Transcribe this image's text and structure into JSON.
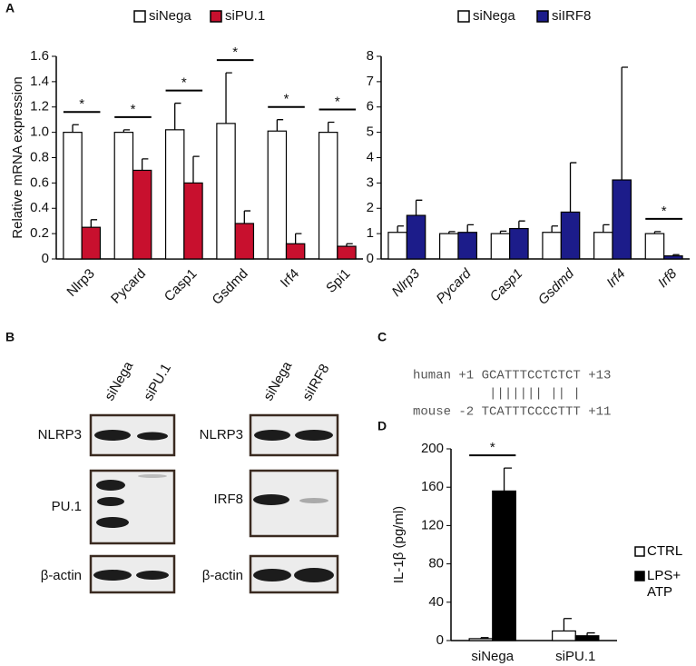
{
  "panels": [
    "A",
    "B",
    "C",
    "D"
  ],
  "chart_data": [
    {
      "type": "bar",
      "ylabel": "Relative mRNA expression",
      "legend": "top",
      "italic": false,
      "categories": [
        "Nlrp3",
        "Pycard",
        "Casp1",
        "Gsdmd",
        "Irf4",
        "Spi1"
      ],
      "series": [
        {
          "name": "siNega",
          "color": "#ffffff",
          "values": [
            1.0,
            1.0,
            1.02,
            1.07,
            1.01,
            1.0
          ],
          "errors": [
            0.06,
            0.02,
            0.21,
            0.4,
            0.09,
            0.08
          ]
        },
        {
          "name": "siPU.1",
          "color": "#c8102e",
          "values": [
            0.25,
            0.7,
            0.6,
            0.28,
            0.12,
            0.1
          ],
          "errors": [
            0.06,
            0.09,
            0.21,
            0.1,
            0.08,
            0.02
          ]
        }
      ],
      "ylim": [
        0,
        1.6
      ],
      "yticks": [
        0,
        0.2,
        0.4,
        0.6,
        0.8,
        {
          "value": 1,
          "label": "1.0"
        },
        1.2,
        1.4,
        1.6
      ],
      "annotations": [
        {
          "text": "*",
          "category": "Nlrp3"
        },
        {
          "text": "*",
          "category": "Pycard"
        },
        {
          "text": "*",
          "category": "Casp1"
        },
        {
          "text": "*",
          "category": "Gsdmd"
        },
        {
          "text": "*",
          "category": "Irf4"
        },
        {
          "text": "*",
          "category": "Spi1"
        }
      ]
    },
    {
      "type": "bar",
      "legend": "top",
      "italic": true,
      "categories": [
        "Nlrp3",
        "Pycard",
        "Casp1",
        "Gsdmd",
        "Irf4",
        "Irf8"
      ],
      "series": [
        {
          "name": "siNega",
          "color": "#ffffff",
          "values": [
            1.05,
            1.0,
            1.0,
            1.05,
            1.05,
            1.0
          ],
          "errors": [
            0.25,
            0.08,
            0.1,
            0.25,
            0.3,
            0.08
          ]
        },
        {
          "name": "siIRF8",
          "color": "#1c1c8a",
          "values": [
            1.72,
            1.05,
            1.2,
            1.85,
            3.12,
            0.12
          ],
          "errors": [
            0.6,
            0.3,
            0.3,
            1.95,
            4.45,
            0.05
          ]
        }
      ],
      "ylim": [
        0,
        8
      ],
      "yticks": [
        0,
        1,
        2,
        3,
        4,
        5,
        6,
        7,
        8
      ],
      "annotations": [
        {
          "text": "*",
          "category": "Irf8"
        }
      ]
    },
    {
      "type": "bar",
      "ylabel": "IL-1β (pg/ml)",
      "legend": "right",
      "italic": false,
      "categories": [
        "siNega",
        "siPU.1"
      ],
      "series": [
        {
          "name": "CTRL",
          "color": "#ffffff",
          "values": [
            2,
            10
          ],
          "errors": [
            1,
            13
          ]
        },
        {
          "name": "LPS+ ATP",
          "color": "#000000",
          "values": [
            156,
            5
          ],
          "errors": [
            24,
            3
          ]
        }
      ],
      "ylim": [
        0,
        200
      ],
      "yticks": [
        0,
        40,
        80,
        120,
        160,
        200
      ],
      "annotations": [
        {
          "text": "*",
          "category": "siNega"
        }
      ]
    }
  ],
  "blots": [
    {
      "lanes": [
        "siNega",
        "siPU.1"
      ],
      "rows": [
        "NLRP3",
        "PU.1",
        "β-actin"
      ]
    },
    {
      "lanes": [
        "siNega",
        "siIRF8"
      ],
      "rows": [
        "NLRP3",
        "IRF8",
        "β-actin"
      ]
    }
  ],
  "alignment": [
    "human +1 GCATTTCCTCTCT +13",
    "          ||||||| || |",
    "mouse -2 TCATTTCCCCTTT +11"
  ]
}
